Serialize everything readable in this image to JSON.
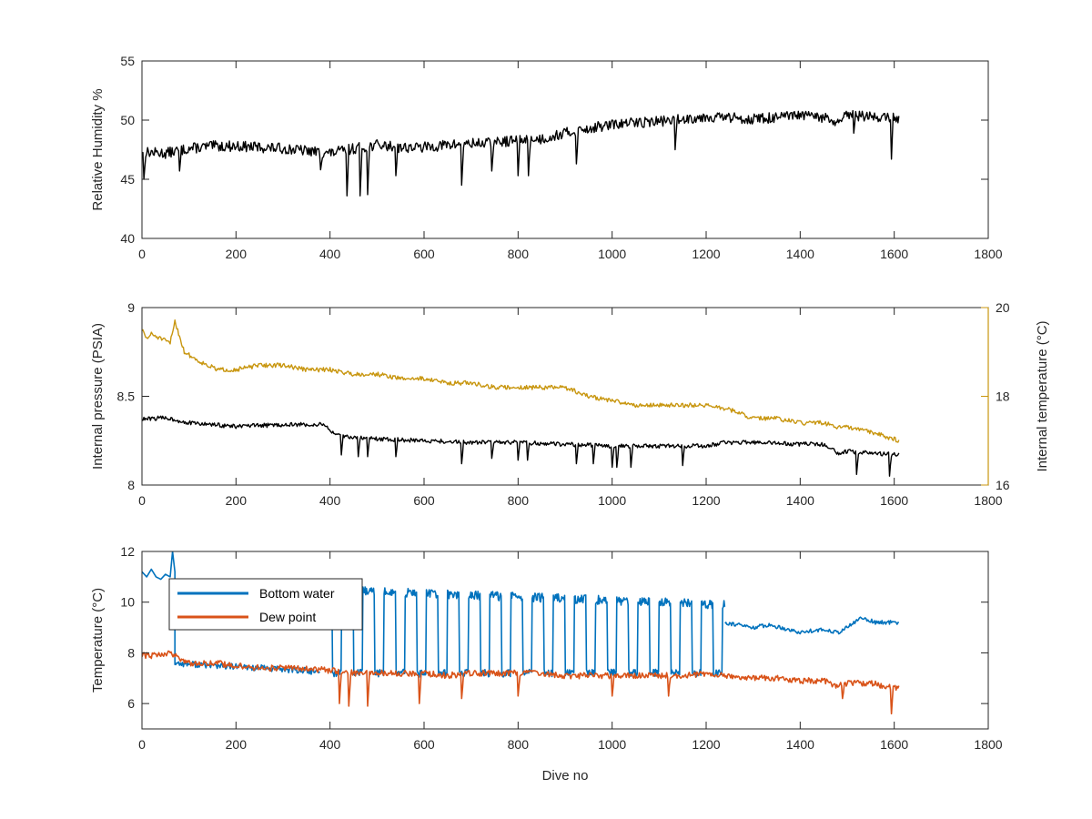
{
  "chart_data": [
    {
      "type": "line",
      "xlabel": "",
      "ylabel": "Relative Humidity %",
      "xlim": [
        0,
        1800
      ],
      "ylim": [
        40,
        55
      ],
      "xticks": [
        "0",
        "200",
        "400",
        "600",
        "800",
        "1000",
        "1200",
        "1400",
        "1600",
        "1800"
      ],
      "yticks": [
        "40",
        "45",
        "50",
        "55"
      ],
      "series": [
        {
          "color": "#000000",
          "x": [
            0,
            50,
            100,
            150,
            200,
            250,
            300,
            350,
            400,
            450,
            500,
            550,
            600,
            650,
            700,
            750,
            800,
            850,
            900,
            950,
            1000,
            1050,
            1100,
            1150,
            1200,
            1250,
            1300,
            1350,
            1400,
            1450,
            1480,
            1500,
            1550,
            1610
          ],
          "y": [
            47.3,
            47.2,
            47.6,
            47.8,
            47.8,
            47.7,
            47.6,
            47.4,
            47.2,
            47.6,
            47.9,
            47.7,
            47.7,
            47.9,
            48.0,
            48.1,
            48.3,
            48.4,
            48.9,
            49.3,
            49.6,
            49.8,
            49.9,
            50.1,
            50.3,
            50.2,
            50.1,
            50.2,
            50.4,
            50.2,
            49.7,
            50.4,
            50.3,
            50.2
          ],
          "dips": [
            [
              5,
              45.0
            ],
            [
              80,
              45.7
            ],
            [
              380,
              45.8
            ],
            [
              437,
              43.6
            ],
            [
              465,
              43.6
            ],
            [
              480,
              43.7
            ],
            [
              540,
              45.3
            ],
            [
              680,
              44.5
            ],
            [
              745,
              45.7
            ],
            [
              800,
              45.3
            ],
            [
              822,
              45.3
            ],
            [
              925,
              46.3
            ],
            [
              1135,
              47.5
            ],
            [
              1515,
              48.9
            ],
            [
              1595,
              46.7
            ]
          ]
        }
      ]
    },
    {
      "type": "line",
      "xlabel": "",
      "ylabel": "Internal pressure (PSIA)",
      "ylabel_right": "Internal temperature (°C)",
      "xlim": [
        0,
        1800
      ],
      "ylim": [
        8,
        9
      ],
      "ylim_right": [
        16,
        20
      ],
      "xticks": [
        "0",
        "200",
        "400",
        "600",
        "800",
        "1000",
        "1200",
        "1400",
        "1600",
        "1800"
      ],
      "yticks": [
        "8",
        "8.5",
        "9"
      ],
      "yticks_right": [
        "16",
        "18",
        "20"
      ],
      "series": [
        {
          "axis": "left",
          "color": "#000000",
          "x": [
            0,
            50,
            100,
            150,
            200,
            300,
            390,
            410,
            450,
            500,
            600,
            700,
            800,
            900,
            1000,
            1100,
            1200,
            1240,
            1300,
            1400,
            1450,
            1480,
            1500,
            1550,
            1610
          ],
          "y": [
            8.37,
            8.38,
            8.35,
            8.34,
            8.33,
            8.34,
            8.34,
            8.28,
            8.27,
            8.26,
            8.25,
            8.24,
            8.24,
            8.23,
            8.22,
            8.22,
            8.22,
            8.24,
            8.24,
            8.23,
            8.23,
            8.18,
            8.19,
            8.18,
            8.17
          ],
          "dips": [
            [
              425,
              8.17
            ],
            [
              460,
              8.16
            ],
            [
              480,
              8.16
            ],
            [
              540,
              8.16
            ],
            [
              680,
              8.12
            ],
            [
              745,
              8.15
            ],
            [
              800,
              8.14
            ],
            [
              820,
              8.14
            ],
            [
              925,
              8.12
            ],
            [
              960,
              8.12
            ],
            [
              1000,
              8.1
            ],
            [
              1010,
              8.1
            ],
            [
              1040,
              8.1
            ],
            [
              1150,
              8.11
            ],
            [
              1520,
              8.06
            ],
            [
              1590,
              8.05
            ]
          ]
        },
        {
          "axis": "right",
          "color": "#C8960F",
          "x": [
            0,
            10,
            20,
            40,
            60,
            70,
            90,
            120,
            160,
            200,
            250,
            300,
            350,
            400,
            450,
            500,
            550,
            600,
            650,
            700,
            750,
            800,
            850,
            900,
            950,
            1000,
            1050,
            1100,
            1150,
            1200,
            1250,
            1300,
            1350,
            1400,
            1450,
            1480,
            1500,
            1550,
            1610
          ],
          "y": [
            19.5,
            19.3,
            19.4,
            19.3,
            19.2,
            19.7,
            19.0,
            18.8,
            18.6,
            18.6,
            18.7,
            18.7,
            18.6,
            18.6,
            18.5,
            18.5,
            18.4,
            18.4,
            18.3,
            18.3,
            18.2,
            18.2,
            18.2,
            18.2,
            18.0,
            17.9,
            17.8,
            17.8,
            17.8,
            17.8,
            17.7,
            17.5,
            17.5,
            17.4,
            17.4,
            17.3,
            17.3,
            17.2,
            17.0
          ]
        }
      ]
    },
    {
      "type": "line",
      "xlabel": "Dive no",
      "ylabel": "Temperature (°C)",
      "xlim": [
        0,
        1800
      ],
      "ylim": [
        5,
        12
      ],
      "xticks": [
        "0",
        "200",
        "400",
        "600",
        "800",
        "1000",
        "1200",
        "1400",
        "1600",
        "1800"
      ],
      "yticks": [
        "6",
        "8",
        "10",
        "12"
      ],
      "legend": {
        "position": "top-left",
        "entries": [
          "Bottom water",
          "Dew point"
        ]
      },
      "series": [
        {
          "name": "Bottom water",
          "color": "#0072BD",
          "head": {
            "x": [
              0,
              10,
              20,
              30,
              40,
              50,
              60,
              65,
              70
            ],
            "y": [
              11.2,
              11.0,
              11.3,
              11.0,
              10.9,
              11.1,
              11.0,
              12.0,
              11.2
            ]
          },
          "baseline": {
            "x": [
              70,
              150,
              250,
              350,
              380
            ],
            "y": [
              7.6,
              7.5,
              7.4,
              7.3,
              7.2
            ]
          },
          "square": {
            "x0": 380,
            "x1": 1240,
            "period": 45,
            "high": 10.5,
            "low": 7.2
          },
          "tail": {
            "x": [
              1240,
              1270,
              1300,
              1330,
              1360,
              1400,
              1430,
              1460,
              1480,
              1500,
              1530,
              1560,
              1610
            ],
            "y": [
              9.2,
              9.1,
              9.0,
              9.1,
              9.0,
              8.8,
              8.9,
              8.9,
              8.8,
              9.0,
              9.4,
              9.2,
              9.2
            ]
          }
        },
        {
          "name": "Dew point",
          "color": "#D95319",
          "x": [
            0,
            30,
            60,
            80,
            100,
            150,
            200,
            250,
            300,
            350,
            400,
            450,
            500,
            550,
            600,
            650,
            700,
            750,
            800,
            850,
            900,
            950,
            1000,
            1050,
            1100,
            1150,
            1200,
            1250,
            1300,
            1350,
            1400,
            1450,
            1480,
            1500,
            1550,
            1610
          ],
          "y": [
            7.9,
            7.9,
            8.0,
            7.8,
            7.6,
            7.6,
            7.5,
            7.4,
            7.4,
            7.4,
            7.3,
            7.2,
            7.2,
            7.2,
            7.2,
            7.1,
            7.2,
            7.2,
            7.2,
            7.2,
            7.1,
            7.1,
            7.1,
            7.1,
            7.1,
            7.1,
            7.2,
            7.1,
            7.0,
            7.0,
            6.9,
            6.9,
            6.7,
            6.8,
            6.8,
            6.6
          ],
          "dips": [
            [
              420,
              6.0
            ],
            [
              440,
              5.9
            ],
            [
              480,
              5.9
            ],
            [
              590,
              6.0
            ],
            [
              680,
              6.2
            ],
            [
              800,
              6.3
            ],
            [
              1000,
              6.3
            ],
            [
              1120,
              6.3
            ],
            [
              1490,
              6.2
            ],
            [
              1595,
              5.6
            ]
          ]
        }
      ]
    }
  ]
}
